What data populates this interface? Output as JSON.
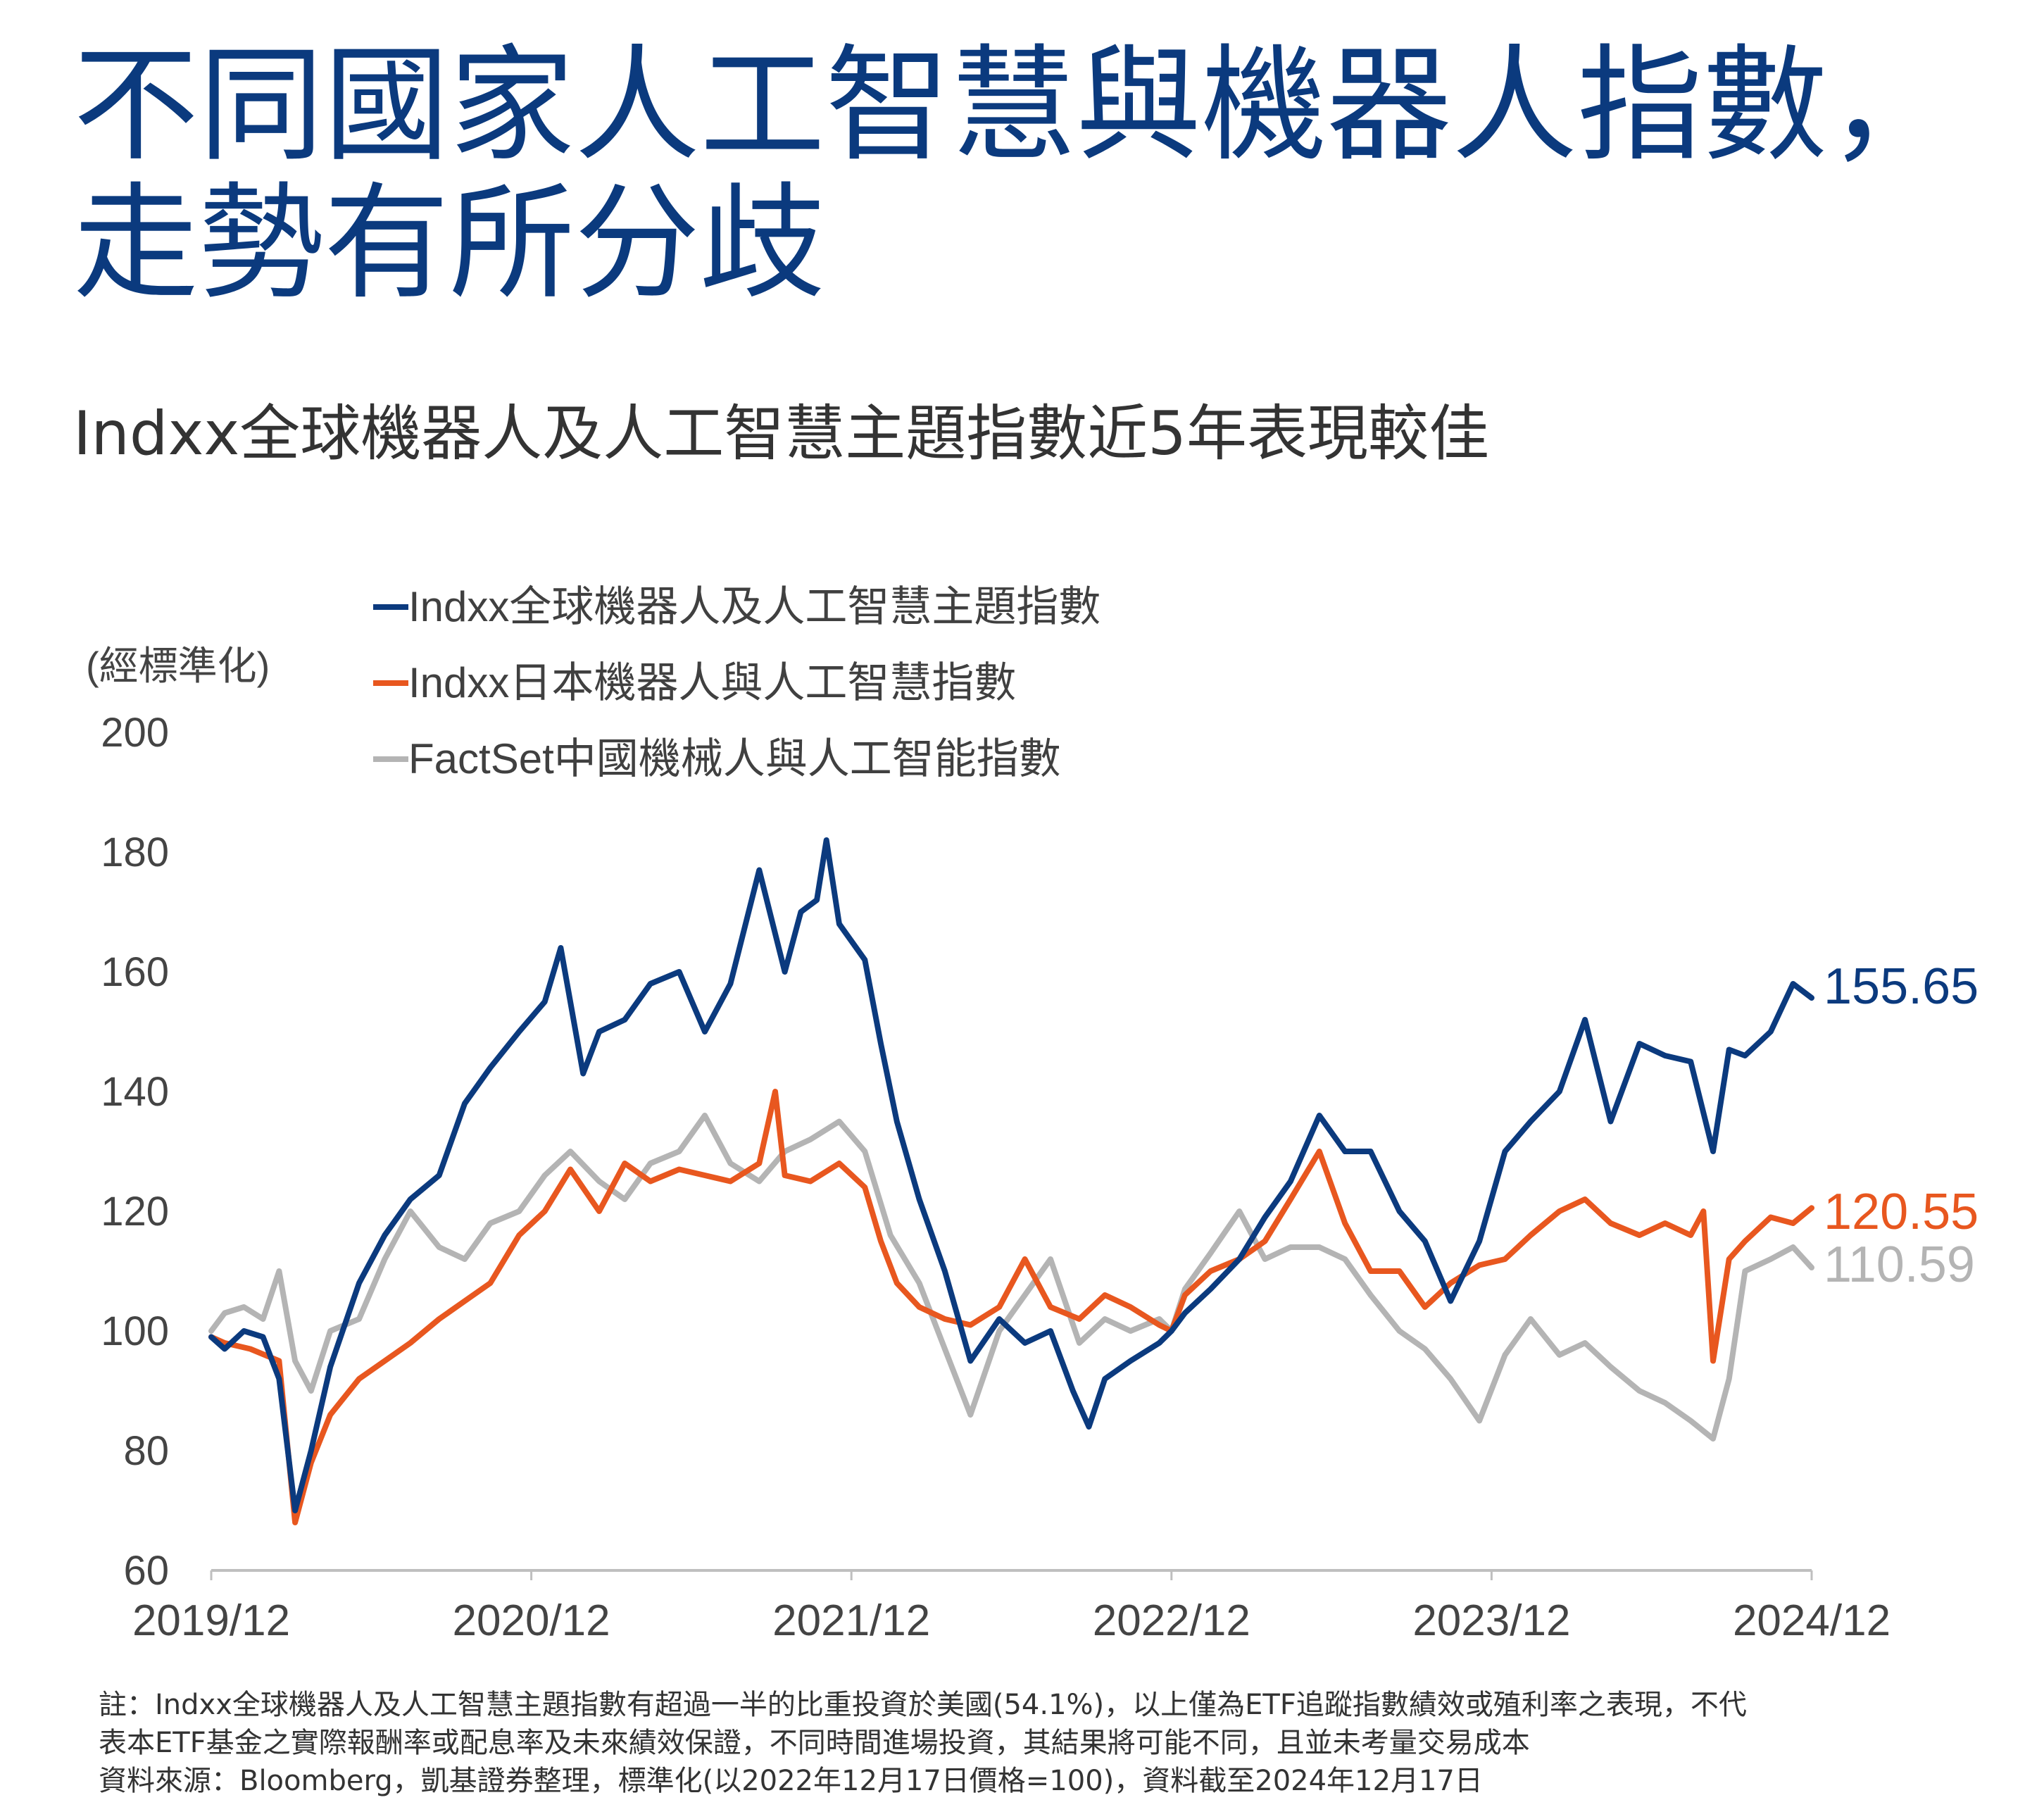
{
  "title_lines": [
    "不同國家人工智慧與機器人指數，",
    "走勢有所分歧"
  ],
  "subtitle": "Indxx全球機器人及人工智慧主題指數近5年表現較佳",
  "notes": [
    "註：Indxx全球機器人及人工智慧主題指數有超過一半的比重投資於美國(54.1%)，以上僅為ETF追蹤指數績效或殖利率之表現，不代",
    "表本ETF基金之實際報酬率或配息率及未來績效保證，不同時間進場投資，其結果將可能不同，且並未考量交易成本",
    "資料來源：Bloomberg，凱基證券整理，標準化(以2022年12月17日價格=100)，資料截至2024年12月17日"
  ],
  "chart_data": {
    "type": "line",
    "ylabel": "(經標準化)",
    "ylim": [
      60,
      200
    ],
    "yticks": [
      60,
      80,
      100,
      120,
      140,
      160,
      180,
      200
    ],
    "xlim": [
      2019.958,
      2024.958
    ],
    "xticks": [
      {
        "x": 2019.958,
        "label": "2019/12"
      },
      {
        "x": 2020.958,
        "label": "2020/12"
      },
      {
        "x": 2021.958,
        "label": "2021/12"
      },
      {
        "x": 2022.958,
        "label": "2022/12"
      },
      {
        "x": 2023.958,
        "label": "2023/12"
      },
      {
        "x": 2024.958,
        "label": "2024/12"
      }
    ],
    "legend_position": "top-left",
    "grid": false,
    "series": [
      {
        "name": "Indxx全球機器人及人工智慧主題指數",
        "color": "#0b3a7e",
        "end_label": "155.65",
        "points": [
          [
            2019.958,
            99
          ],
          [
            2020.0,
            97
          ],
          [
            2020.06,
            100
          ],
          [
            2020.12,
            99
          ],
          [
            2020.17,
            92
          ],
          [
            2020.22,
            70
          ],
          [
            2020.27,
            80
          ],
          [
            2020.33,
            94
          ],
          [
            2020.42,
            108
          ],
          [
            2020.5,
            116
          ],
          [
            2020.58,
            122
          ],
          [
            2020.67,
            126
          ],
          [
            2020.75,
            138
          ],
          [
            2020.83,
            144
          ],
          [
            2020.92,
            150
          ],
          [
            2021.0,
            155
          ],
          [
            2021.05,
            164
          ],
          [
            2021.12,
            143
          ],
          [
            2021.17,
            150
          ],
          [
            2021.25,
            152
          ],
          [
            2021.33,
            158
          ],
          [
            2021.42,
            160
          ],
          [
            2021.5,
            150
          ],
          [
            2021.58,
            158
          ],
          [
            2021.67,
            177
          ],
          [
            2021.75,
            160
          ],
          [
            2021.8,
            170
          ],
          [
            2021.85,
            172
          ],
          [
            2021.88,
            182
          ],
          [
            2021.92,
            168
          ],
          [
            2022.0,
            162
          ],
          [
            2022.05,
            148
          ],
          [
            2022.1,
            135
          ],
          [
            2022.17,
            122
          ],
          [
            2022.25,
            110
          ],
          [
            2022.33,
            95
          ],
          [
            2022.42,
            102
          ],
          [
            2022.5,
            98
          ],
          [
            2022.58,
            100
          ],
          [
            2022.65,
            90
          ],
          [
            2022.7,
            84
          ],
          [
            2022.75,
            92
          ],
          [
            2022.83,
            95
          ],
          [
            2022.92,
            98
          ],
          [
            2022.958,
            100
          ],
          [
            2023.0,
            103
          ],
          [
            2023.08,
            107
          ],
          [
            2023.17,
            112
          ],
          [
            2023.25,
            119
          ],
          [
            2023.33,
            125
          ],
          [
            2023.42,
            136
          ],
          [
            2023.5,
            130
          ],
          [
            2023.58,
            130
          ],
          [
            2023.67,
            120
          ],
          [
            2023.75,
            115
          ],
          [
            2023.83,
            105
          ],
          [
            2023.92,
            115
          ],
          [
            2024.0,
            130
          ],
          [
            2024.08,
            135
          ],
          [
            2024.17,
            140
          ],
          [
            2024.25,
            152
          ],
          [
            2024.33,
            135
          ],
          [
            2024.42,
            148
          ],
          [
            2024.5,
            146
          ],
          [
            2024.58,
            145
          ],
          [
            2024.65,
            130
          ],
          [
            2024.7,
            147
          ],
          [
            2024.75,
            146
          ],
          [
            2024.83,
            150
          ],
          [
            2024.9,
            158
          ],
          [
            2024.958,
            155.65
          ]
        ]
      },
      {
        "name": "Indxx日本機器人與人工智慧指數",
        "color": "#e8571f",
        "end_label": "120.55",
        "points": [
          [
            2019.958,
            99
          ],
          [
            2020.0,
            98
          ],
          [
            2020.08,
            97
          ],
          [
            2020.17,
            95
          ],
          [
            2020.22,
            68
          ],
          [
            2020.27,
            78
          ],
          [
            2020.33,
            86
          ],
          [
            2020.42,
            92
          ],
          [
            2020.5,
            95
          ],
          [
            2020.58,
            98
          ],
          [
            2020.67,
            102
          ],
          [
            2020.75,
            105
          ],
          [
            2020.83,
            108
          ],
          [
            2020.92,
            116
          ],
          [
            2021.0,
            120
          ],
          [
            2021.08,
            127
          ],
          [
            2021.17,
            120
          ],
          [
            2021.25,
            128
          ],
          [
            2021.33,
            125
          ],
          [
            2021.42,
            127
          ],
          [
            2021.5,
            126
          ],
          [
            2021.58,
            125
          ],
          [
            2021.67,
            128
          ],
          [
            2021.72,
            140
          ],
          [
            2021.75,
            126
          ],
          [
            2021.83,
            125
          ],
          [
            2021.92,
            128
          ],
          [
            2022.0,
            124
          ],
          [
            2022.05,
            115
          ],
          [
            2022.1,
            108
          ],
          [
            2022.17,
            104
          ],
          [
            2022.25,
            102
          ],
          [
            2022.33,
            101
          ],
          [
            2022.42,
            104
          ],
          [
            2022.5,
            112
          ],
          [
            2022.58,
            104
          ],
          [
            2022.67,
            102
          ],
          [
            2022.75,
            106
          ],
          [
            2022.83,
            104
          ],
          [
            2022.92,
            101
          ],
          [
            2022.958,
            100
          ],
          [
            2023.0,
            106
          ],
          [
            2023.08,
            110
          ],
          [
            2023.17,
            112
          ],
          [
            2023.25,
            115
          ],
          [
            2023.33,
            122
          ],
          [
            2023.42,
            130
          ],
          [
            2023.5,
            118
          ],
          [
            2023.58,
            110
          ],
          [
            2023.67,
            110
          ],
          [
            2023.75,
            104
          ],
          [
            2023.83,
            108
          ],
          [
            2023.92,
            111
          ],
          [
            2024.0,
            112
          ],
          [
            2024.08,
            116
          ],
          [
            2024.17,
            120
          ],
          [
            2024.25,
            122
          ],
          [
            2024.33,
            118
          ],
          [
            2024.42,
            116
          ],
          [
            2024.5,
            118
          ],
          [
            2024.58,
            116
          ],
          [
            2024.62,
            120
          ],
          [
            2024.65,
            95
          ],
          [
            2024.7,
            112
          ],
          [
            2024.75,
            115
          ],
          [
            2024.83,
            119
          ],
          [
            2024.9,
            118
          ],
          [
            2024.958,
            120.55
          ]
        ]
      },
      {
        "name": "FactSet中國機械人與人工智能指數",
        "color": "#b4b4b4",
        "end_label": "110.59",
        "points": [
          [
            2019.958,
            100
          ],
          [
            2020.0,
            103
          ],
          [
            2020.06,
            104
          ],
          [
            2020.12,
            102
          ],
          [
            2020.17,
            110
          ],
          [
            2020.22,
            95
          ],
          [
            2020.27,
            90
          ],
          [
            2020.33,
            100
          ],
          [
            2020.42,
            102
          ],
          [
            2020.5,
            112
          ],
          [
            2020.58,
            120
          ],
          [
            2020.67,
            114
          ],
          [
            2020.75,
            112
          ],
          [
            2020.83,
            118
          ],
          [
            2020.92,
            120
          ],
          [
            2021.0,
            126
          ],
          [
            2021.08,
            130
          ],
          [
            2021.17,
            125
          ],
          [
            2021.25,
            122
          ],
          [
            2021.33,
            128
          ],
          [
            2021.42,
            130
          ],
          [
            2021.5,
            136
          ],
          [
            2021.58,
            128
          ],
          [
            2021.67,
            125
          ],
          [
            2021.75,
            130
          ],
          [
            2021.83,
            132
          ],
          [
            2021.92,
            135
          ],
          [
            2022.0,
            130
          ],
          [
            2022.08,
            116
          ],
          [
            2022.17,
            108
          ],
          [
            2022.25,
            97
          ],
          [
            2022.33,
            86
          ],
          [
            2022.42,
            100
          ],
          [
            2022.5,
            106
          ],
          [
            2022.58,
            112
          ],
          [
            2022.67,
            98
          ],
          [
            2022.75,
            102
          ],
          [
            2022.83,
            100
          ],
          [
            2022.92,
            102
          ],
          [
            2022.958,
            100
          ],
          [
            2023.0,
            107
          ],
          [
            2023.08,
            113
          ],
          [
            2023.17,
            120
          ],
          [
            2023.25,
            112
          ],
          [
            2023.33,
            114
          ],
          [
            2023.42,
            114
          ],
          [
            2023.5,
            112
          ],
          [
            2023.58,
            106
          ],
          [
            2023.67,
            100
          ],
          [
            2023.75,
            97
          ],
          [
            2023.83,
            92
          ],
          [
            2023.92,
            85
          ],
          [
            2024.0,
            96
          ],
          [
            2024.08,
            102
          ],
          [
            2024.17,
            96
          ],
          [
            2024.25,
            98
          ],
          [
            2024.33,
            94
          ],
          [
            2024.42,
            90
          ],
          [
            2024.5,
            88
          ],
          [
            2024.58,
            85
          ],
          [
            2024.65,
            82
          ],
          [
            2024.7,
            92
          ],
          [
            2024.75,
            110
          ],
          [
            2024.83,
            112
          ],
          [
            2024.9,
            114
          ],
          [
            2024.958,
            110.59
          ]
        ]
      }
    ]
  }
}
